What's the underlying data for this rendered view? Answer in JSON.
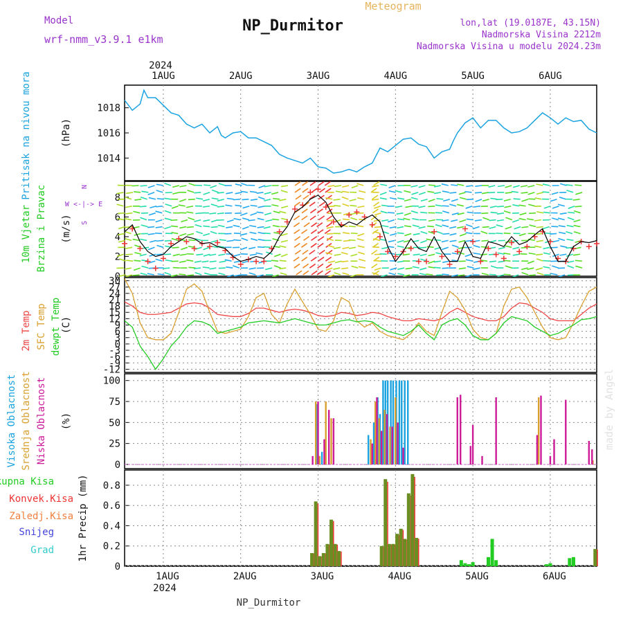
{
  "header": {
    "title": "NP_Durmitor",
    "meteogram": "Meteogram",
    "model_label": "Model",
    "model_name": "wrf-nmm_v3.9.1 e1km",
    "lonlat": "lon,lat (19.0187E, 43.15N)",
    "elevation": "Nadmorska Visina 2212m",
    "model_elevation": "Nadmorska Visina u modelu 2024.23m",
    "year_top": "2024",
    "year_bottom": "2024",
    "footer": "NP_Durmitor",
    "watermark": "made by Angel"
  },
  "colors": {
    "pressure": "#1aa3e0",
    "temp2m": "#ee4444",
    "sfc": "#d9a030",
    "dewpt": "#22cc22",
    "high": "#1aa3e0",
    "mid": "#d9a030",
    "low": "#cc1a99",
    "rain": "#22cc22",
    "conv": "#ee3333",
    "frozen": "#f07f3f",
    "snow": "#4444dd",
    "hail": "#33cccc",
    "purple": "#9933cc"
  },
  "chart_data": [
    {
      "type": "line",
      "panel": "pressure",
      "ylabel": "(hPa)",
      "side_label": "Pritisak na nivou mora",
      "ylim": [
        1012.2,
        1019.8
      ],
      "yticks": [
        1014,
        1016,
        1018
      ],
      "xlim": [
        0,
        6.1
      ],
      "x_ticks": [
        "1AUG",
        "2AUG",
        "3AUG",
        "4AUG",
        "5AUG",
        "6AUG"
      ],
      "series": [
        {
          "color": "#1aa3e0",
          "x": [
            0.0,
            0.1,
            0.2,
            0.25,
            0.3,
            0.35,
            0.4,
            0.5,
            0.6,
            0.7,
            0.8,
            0.9,
            1.0,
            1.1,
            1.2,
            1.25,
            1.3,
            1.4,
            1.5,
            1.6,
            1.7,
            1.8,
            1.9,
            2.0,
            2.1,
            2.2,
            2.3,
            2.4,
            2.5,
            2.6,
            2.7,
            2.8,
            2.9,
            3.0,
            3.1,
            3.2,
            3.3,
            3.4,
            3.5,
            3.6,
            3.7,
            3.8,
            3.9,
            4.0,
            4.1,
            4.2,
            4.25,
            4.3,
            4.4,
            4.5,
            4.6,
            4.7,
            4.8,
            4.9,
            5.0,
            5.1,
            5.2,
            5.3,
            5.4,
            5.5,
            5.6,
            5.7,
            5.8,
            5.9,
            6.0,
            6.1
          ],
          "y": [
            1018.6,
            1017.8,
            1018.3,
            1019.4,
            1018.8,
            1018.8,
            1018.8,
            1018.2,
            1017.6,
            1017.4,
            1016.7,
            1016.4,
            1016.7,
            1016.0,
            1016.5,
            1015.8,
            1015.6,
            1016.0,
            1016.1,
            1015.6,
            1015.6,
            1015.3,
            1015.0,
            1014.3,
            1014.0,
            1013.8,
            1013.6,
            1014.0,
            1013.3,
            1013.2,
            1012.8,
            1012.9,
            1013.1,
            1012.9,
            1013.3,
            1013.6,
            1014.8,
            1014.5,
            1015.0,
            1015.5,
            1015.6,
            1015.1,
            1014.9,
            1014.0,
            1014.5,
            1014.7,
            1015.4,
            1016.0,
            1016.8,
            1017.2,
            1016.4,
            1017.0,
            1017.0,
            1016.4,
            1016.0,
            1016.1,
            1016.4,
            1017.0,
            1017.6,
            1017.2,
            1016.7,
            1017.2,
            1016.9,
            1017.0,
            1016.3,
            1016.0
          ]
        }
      ]
    },
    {
      "type": "line",
      "panel": "wind",
      "ylabel": "(m/s)",
      "side_label": [
        "10m Vjetar",
        "Brzina i Pravac"
      ],
      "compass_label": "W <-|-> E",
      "compass_ns": [
        "N",
        "S"
      ],
      "ylim": [
        0,
        9.6
      ],
      "yticks": [
        0,
        2,
        4,
        6,
        8
      ],
      "xlim": [
        0,
        6.1
      ],
      "x": [
        0.0,
        0.1,
        0.2,
        0.3,
        0.4,
        0.5,
        0.6,
        0.7,
        0.8,
        0.9,
        1.0,
        1.1,
        1.2,
        1.3,
        1.4,
        1.5,
        1.6,
        1.7,
        1.8,
        1.9,
        2.0,
        2.1,
        2.2,
        2.3,
        2.4,
        2.5,
        2.6,
        2.7,
        2.8,
        2.9,
        3.0,
        3.1,
        3.2,
        3.3,
        3.4,
        3.5,
        3.6,
        3.7,
        3.8,
        3.9,
        4.0,
        4.1,
        4.2,
        4.3,
        4.4,
        4.5,
        4.6,
        4.7,
        4.8,
        4.9,
        5.0,
        5.1,
        5.2,
        5.3,
        5.4,
        5.5,
        5.6,
        5.7,
        5.8,
        5.9,
        6.0,
        6.1
      ],
      "series": [
        {
          "name": "speed",
          "color": "#000000",
          "y": [
            4.5,
            5.2,
            3.5,
            2.5,
            2.0,
            2.2,
            3.0,
            3.5,
            4.0,
            3.8,
            3.3,
            3.4,
            3.0,
            2.8,
            2.0,
            1.5,
            1.7,
            2.0,
            1.8,
            2.5,
            4.0,
            5.0,
            6.5,
            7.0,
            7.8,
            8.2,
            7.5,
            6.0,
            5.0,
            5.5,
            5.2,
            5.8,
            6.2,
            5.5,
            3.0,
            1.5,
            2.5,
            3.8,
            2.8,
            2.5,
            4.0,
            2.5,
            1.5,
            1.5,
            3.5,
            2.0,
            1.8,
            3.5,
            3.3,
            3.0,
            4.0,
            3.2,
            3.5,
            4.2,
            4.8,
            3.0,
            1.5,
            1.5,
            3.0,
            3.5,
            3.4,
            3.6
          ]
        },
        {
          "name": "gust",
          "color": "#ee3333",
          "y": [
            3.3,
            4.8,
            2.8,
            1.5,
            0.8,
            1.8,
            3.3,
            3.8,
            3.5,
            2.8,
            3.3,
            3.0,
            3.4,
            2.6,
            1.9,
            1.2,
            1.7,
            1.5,
            1.5,
            2.8,
            4.5,
            5.5,
            6.8,
            7.2,
            8.5,
            8.8,
            7.0,
            5.5,
            5.2,
            6.2,
            6.5,
            6.0,
            5.2,
            4.0,
            2.5,
            2.0,
            2.5,
            2.8,
            1.5,
            1.5,
            4.5,
            2.0,
            1.2,
            2.5,
            4.8,
            3.5,
            1.5,
            2.8,
            2.2,
            1.8,
            3.4,
            2.5,
            3.0,
            4.0,
            4.5,
            3.5,
            1.8,
            1.5,
            2.8,
            3.5,
            3.0,
            3.3
          ]
        }
      ]
    },
    {
      "type": "line",
      "panel": "temperature",
      "ylabel": "(C)",
      "side_label": [
        "2m Temp",
        "SFC Temp",
        "dewpt Temp"
      ],
      "ylim": [
        -13.5,
        31.5
      ],
      "yticks": [
        -12,
        -9,
        -6,
        -3,
        0,
        3,
        6,
        9,
        12,
        15,
        18,
        21,
        24,
        27,
        30
      ],
      "xlim": [
        0,
        6.1
      ],
      "x": [
        0.0,
        0.1,
        0.2,
        0.3,
        0.4,
        0.5,
        0.6,
        0.7,
        0.8,
        0.9,
        1.0,
        1.1,
        1.2,
        1.3,
        1.4,
        1.5,
        1.6,
        1.7,
        1.8,
        1.9,
        2.0,
        2.1,
        2.2,
        2.3,
        2.4,
        2.5,
        2.6,
        2.7,
        2.8,
        2.9,
        3.0,
        3.1,
        3.2,
        3.3,
        3.4,
        3.5,
        3.6,
        3.7,
        3.8,
        3.9,
        4.0,
        4.1,
        4.2,
        4.3,
        4.4,
        4.5,
        4.6,
        4.7,
        4.8,
        4.9,
        5.0,
        5.1,
        5.2,
        5.3,
        5.4,
        5.5,
        5.6,
        5.7,
        5.8,
        5.9,
        6.0,
        6.1
      ],
      "series": [
        {
          "name": "2m Temp",
          "color": "#ee4444",
          "y": [
            20,
            18,
            15,
            14,
            14,
            14.5,
            15,
            17,
            19,
            19.5,
            19,
            17,
            14,
            13.5,
            13,
            13,
            14.5,
            17,
            17,
            16,
            15,
            16,
            16.5,
            16,
            15,
            13.5,
            13,
            13.5,
            15,
            14.5,
            13.5,
            14,
            15,
            14.5,
            13,
            12,
            11,
            11,
            12,
            11.5,
            11,
            12,
            15,
            17,
            15,
            13,
            12,
            11,
            11,
            13,
            17,
            19.5,
            19,
            17,
            15,
            12,
            11,
            11,
            11,
            14,
            17,
            19
          ]
        },
        {
          "name": "SFC Temp",
          "color": "#d9a030",
          "y": [
            31,
            24,
            10,
            3,
            2,
            2,
            5,
            15,
            26,
            28.5,
            25,
            15,
            6,
            5,
            6,
            7,
            13,
            22,
            24,
            14,
            10,
            19,
            26,
            20,
            14,
            7,
            6,
            11,
            22,
            20,
            11,
            8,
            10,
            6,
            4,
            3,
            2,
            5,
            10,
            6,
            4,
            15,
            25,
            22,
            16,
            7,
            3,
            2,
            5,
            18,
            26,
            27,
            22,
            15,
            8,
            3,
            2,
            3,
            10,
            18,
            25,
            27
          ]
        },
        {
          "name": "dewpt Temp",
          "color": "#22cc22",
          "y": [
            11,
            8,
            -1,
            -6,
            -12,
            -7,
            -1,
            3,
            8,
            11,
            10.5,
            9,
            5,
            6,
            7,
            8,
            10,
            10.5,
            11,
            10.5,
            10,
            11,
            12,
            11,
            10,
            9,
            9,
            10,
            11,
            11.5,
            10.5,
            11,
            10.5,
            8,
            6,
            5,
            4,
            6,
            9,
            5,
            2,
            9,
            11,
            12,
            9,
            4,
            2,
            2,
            5,
            10,
            13,
            12,
            11,
            8,
            6,
            4,
            5,
            7,
            9,
            11.5,
            12,
            13
          ]
        }
      ]
    },
    {
      "type": "bar",
      "panel": "clouds",
      "ylabel": "(%)",
      "side_label": [
        "Visoka Oblacnost",
        "Srednja Oblacnost",
        "Niska Oblacnost"
      ],
      "ylim": [
        -5,
        108
      ],
      "yticks": [
        0,
        25,
        50,
        75,
        100
      ],
      "xlim": [
        0,
        6.1
      ],
      "series": [
        {
          "name": "Visoka Oblacnost",
          "color": "#1aa3e0",
          "x": [
            2.49,
            2.55,
            3.15,
            3.22,
            3.27,
            3.3,
            3.34,
            3.37,
            3.4,
            3.44,
            3.47,
            3.51,
            3.55,
            3.58,
            3.62,
            3.66
          ],
          "y": [
            72,
            15,
            35,
            50,
            80,
            60,
            100,
            100,
            100,
            100,
            100,
            100,
            100,
            100,
            100,
            100
          ]
        },
        {
          "name": "Srednja Oblacnost",
          "color": "#d9a030",
          "x": [
            2.47,
            2.52,
            2.6,
            2.67,
            3.18,
            3.24,
            3.29,
            3.36,
            3.43,
            3.5,
            5.35,
            6.05
          ],
          "y": [
            75,
            10,
            75,
            55,
            30,
            75,
            55,
            65,
            45,
            80,
            80,
            5
          ]
        },
        {
          "name": "Niska Oblacnost",
          "color": "#cc1a99",
          "x": [
            2.43,
            2.5,
            2.58,
            2.64,
            2.7,
            3.2,
            3.26,
            3.32,
            3.39,
            3.46,
            3.53,
            3.6,
            4.3,
            4.34,
            4.47,
            4.5,
            4.62,
            4.8,
            5.33,
            5.38,
            5.5,
            5.55,
            5.7,
            6.0,
            6.04
          ],
          "y": [
            10,
            75,
            30,
            65,
            55,
            25,
            80,
            40,
            60,
            45,
            50,
            20,
            80,
            83,
            22,
            47,
            10,
            80,
            35,
            82,
            10,
            30,
            77,
            28,
            18
          ]
        }
      ]
    },
    {
      "type": "bar",
      "panel": "precip",
      "ylabel": "1hr Precip (mm)",
      "side_label": [
        "Ukupna Kisa",
        "Konvek.Kisa",
        "Zaledj.Kisa",
        "Snijeg",
        "Grad"
      ],
      "ylim": [
        0,
        0.95
      ],
      "yticks": [
        0,
        0.2,
        0.4,
        0.6,
        0.8
      ],
      "xlim": [
        0,
        6.1
      ],
      "series": [
        {
          "name": "Konvek.Kisa",
          "color": "#ee3333",
          "x": [
            2.42,
            2.47,
            2.52,
            2.57,
            2.62,
            2.67,
            2.72,
            2.77,
            3.32,
            3.37,
            3.42,
            3.47,
            3.52,
            3.57,
            3.62,
            3.67,
            3.72,
            3.77,
            6.08
          ],
          "y": [
            0.13,
            0.64,
            0.1,
            0.13,
            0.22,
            0.46,
            0.22,
            0.15,
            0.2,
            0.86,
            0.22,
            0.22,
            0.32,
            0.37,
            0.27,
            0.72,
            0.91,
            0.28,
            0.17
          ]
        },
        {
          "name": "Ukupna Kisa",
          "color": "#22cc22",
          "x": [
            4.35,
            4.4,
            4.45,
            4.5,
            4.7,
            4.75,
            4.8,
            5.45,
            5.5,
            5.75,
            5.8
          ],
          "y": [
            0.06,
            0.03,
            0.02,
            0.04,
            0.09,
            0.27,
            0.06,
            0.02,
            0.03,
            0.08,
            0.09
          ]
        }
      ]
    }
  ],
  "x_axis": {
    "labels": [
      "1AUG",
      "2AUG",
      "3AUG",
      "4AUG",
      "5AUG",
      "6AUG"
    ],
    "values": [
      0.5,
      1.5,
      2.5,
      3.5,
      4.5,
      5.5
    ]
  }
}
